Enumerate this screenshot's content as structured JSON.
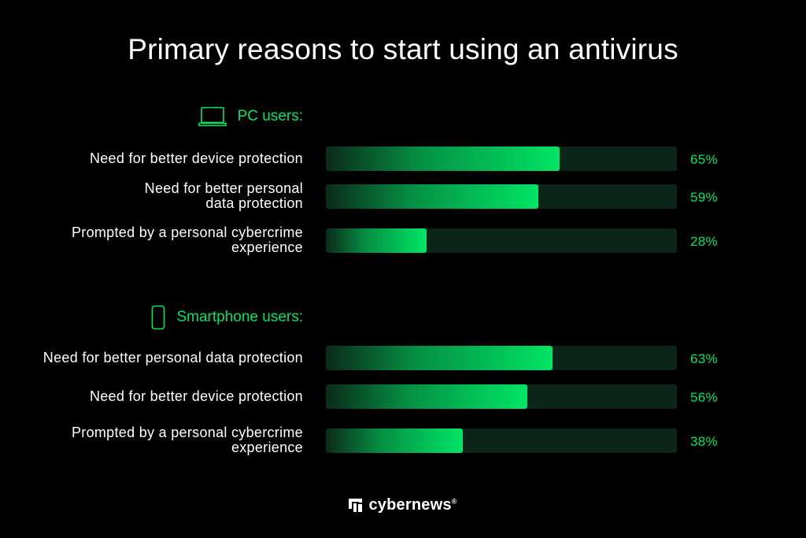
{
  "chart_data": {
    "type": "bar",
    "orientation": "horizontal",
    "title": "Primary reasons to start using an antivirus",
    "unit": "%",
    "xlim": [
      0,
      100
    ],
    "grid": false,
    "groups": [
      {
        "name": "PC users:",
        "icon": "laptop-icon",
        "categories": [
          "Need for better device protection",
          "Need for better personal data protection",
          "Prompted by a personal cybercrime experience"
        ],
        "values": [
          65,
          59,
          28
        ],
        "value_labels": [
          "65%",
          "59%",
          "28%"
        ]
      },
      {
        "name": "Smartphone users:",
        "icon": "smartphone-icon",
        "categories": [
          "Need for better personal data protection",
          "Need for better device protection",
          "Prompted by a personal cybercrime experience"
        ],
        "values": [
          63,
          56,
          38
        ],
        "value_labels": [
          "63%",
          "56%",
          "38%"
        ]
      }
    ]
  },
  "colors": {
    "background": "#000000",
    "text": "#ffffff",
    "accent": "#00e566",
    "track": "#0b2618"
  },
  "footer": {
    "brand": "cybernews",
    "mark": "®",
    "logo_icon": "cybernews-logo-icon"
  }
}
